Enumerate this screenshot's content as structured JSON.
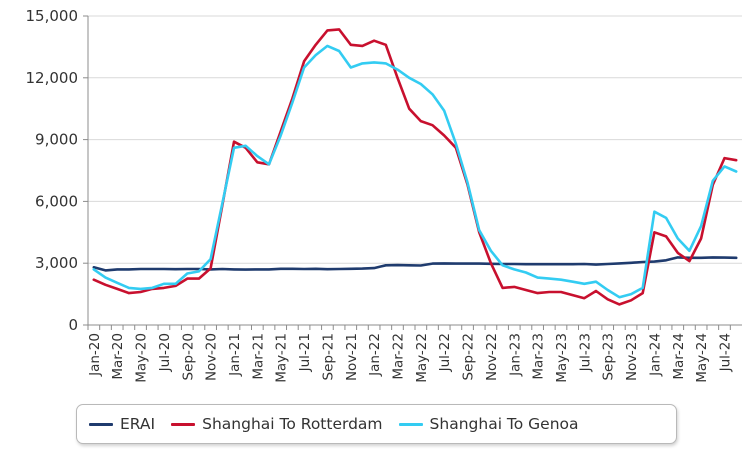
{
  "chart_data": {
    "type": "line",
    "title": "",
    "xlabel": "",
    "ylabel": "",
    "ylim": [
      0,
      15000
    ],
    "yticks": [
      0,
      3000,
      6000,
      9000,
      12000,
      15000
    ],
    "ytick_labels": [
      "0",
      "3,000",
      "6,000",
      "9,000",
      "12,000",
      "15,000"
    ],
    "grid": "horizontal",
    "legend": "bottom",
    "x": [
      "Jan-20",
      "Feb-20",
      "Mar-20",
      "Apr-20",
      "May-20",
      "Jun-20",
      "Jul-20",
      "Aug-20",
      "Sep-20",
      "Oct-20",
      "Nov-20",
      "Dec-20",
      "Jan-21",
      "Feb-21",
      "Mar-21",
      "Apr-21",
      "May-21",
      "Jun-21",
      "Jul-21",
      "Aug-21",
      "Sep-21",
      "Oct-21",
      "Nov-21",
      "Dec-21",
      "Jan-22",
      "Feb-22",
      "Mar-22",
      "Apr-22",
      "May-22",
      "Jun-22",
      "Jul-22",
      "Aug-22",
      "Sep-22",
      "Oct-22",
      "Nov-22",
      "Dec-22",
      "Jan-23",
      "Feb-23",
      "Mar-23",
      "Apr-23",
      "May-23",
      "Jun-23",
      "Jul-23",
      "Aug-23",
      "Sep-23",
      "Oct-23",
      "Nov-23",
      "Dec-23",
      "Jan-24",
      "Feb-24",
      "Mar-24",
      "Apr-24",
      "May-24",
      "Jun-24",
      "Jul-24",
      "Aug-24"
    ],
    "x_tick_labels": [
      "Jan-20",
      "Mar-20",
      "May-20",
      "Jul-20",
      "Sep-20",
      "Nov-20",
      "Jan-21",
      "Mar-21",
      "May-21",
      "Jul-21",
      "Sep-21",
      "Nov-21",
      "Jan-22",
      "Mar-22",
      "May-22",
      "Jul-22",
      "Sep-22",
      "Nov-22",
      "Jan-23",
      "Mar-23",
      "May-23",
      "Jul-23",
      "Sep-23",
      "Nov-23",
      "Jan-24",
      "Mar-24",
      "May-24",
      "Jul-24"
    ],
    "series": [
      {
        "name": "ERAI",
        "color": "#1f3b6e",
        "values": [
          2800,
          2650,
          2700,
          2700,
          2720,
          2720,
          2720,
          2710,
          2720,
          2720,
          2700,
          2720,
          2700,
          2690,
          2700,
          2700,
          2730,
          2730,
          2720,
          2730,
          2710,
          2720,
          2730,
          2740,
          2760,
          2900,
          2910,
          2900,
          2890,
          2980,
          2990,
          2980,
          2980,
          2980,
          2970,
          2960,
          2960,
          2950,
          2950,
          2950,
          2950,
          2950,
          2960,
          2930,
          2960,
          2990,
          3020,
          3060,
          3080,
          3140,
          3280,
          3260,
          3260,
          3280,
          3270,
          3260
        ]
      },
      {
        "name": "Shanghai To Rotterdam",
        "color": "#c8102e",
        "values": [
          2200,
          1950,
          1750,
          1550,
          1600,
          1750,
          1800,
          1900,
          2250,
          2250,
          2750,
          5800,
          8900,
          8600,
          7900,
          7800,
          9400,
          11000,
          12800,
          13600,
          14300,
          14350,
          13600,
          13550,
          13800,
          13600,
          12000,
          10500,
          9900,
          9700,
          9200,
          8600,
          6800,
          4500,
          3000,
          1800,
          1850,
          1700,
          1550,
          1600,
          1600,
          1450,
          1300,
          1650,
          1250,
          1000,
          1200,
          1550,
          4500,
          4300,
          3500,
          3100,
          4200,
          6800,
          8100,
          8000
        ]
      },
      {
        "name": "Shanghai To Genoa",
        "color": "#33ccf2",
        "values": [
          2700,
          2300,
          2050,
          1800,
          1750,
          1800,
          2000,
          2000,
          2500,
          2600,
          3200,
          5900,
          8600,
          8700,
          8200,
          7800,
          9200,
          10800,
          12500,
          13100,
          13550,
          13300,
          12500,
          12700,
          12750,
          12700,
          12400,
          12000,
          11700,
          11200,
          10400,
          8800,
          6900,
          4600,
          3600,
          2900,
          2700,
          2550,
          2300,
          2250,
          2200,
          2100,
          2000,
          2100,
          1700,
          1350,
          1500,
          1800,
          5500,
          5200,
          4200,
          3600,
          4800,
          7000,
          7700,
          7450
        ]
      }
    ]
  }
}
